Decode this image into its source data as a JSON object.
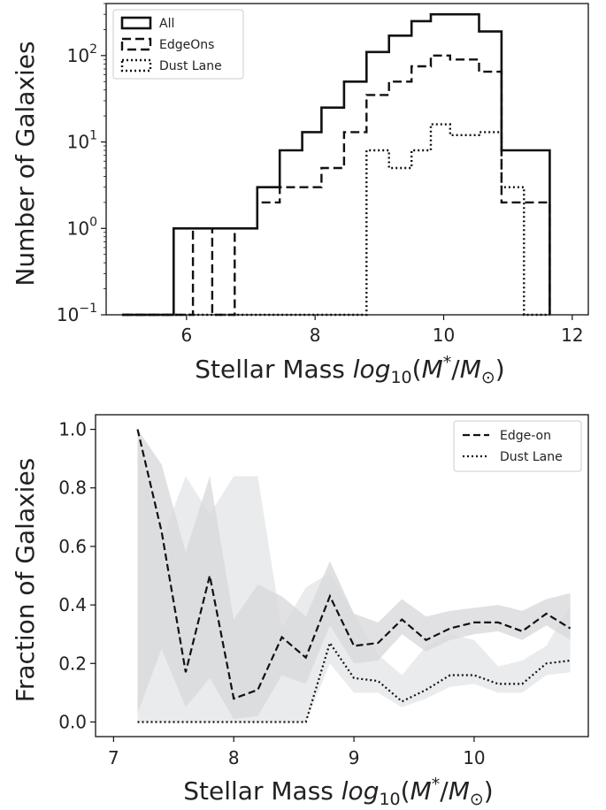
{
  "chart_data": [
    {
      "type": "histogram",
      "ylabel": "Number of Galaxies",
      "xlabel_text": "Stellar Mass",
      "xlabel_math": "log10(M*/M⊙)",
      "xlim": [
        4.75,
        12.25
      ],
      "xticks": [
        6,
        8,
        10,
        12
      ],
      "yscale": "log",
      "ylim": [
        0.1,
        400
      ],
      "yticks": [
        {
          "value": 0.1,
          "base": "10",
          "exp": "−1"
        },
        {
          "value": 1,
          "base": "10",
          "exp": "0"
        },
        {
          "value": 10,
          "base": "10",
          "exp": "1"
        },
        {
          "value": 100,
          "base": "10",
          "exp": "2"
        }
      ],
      "legend_position": "upper-left",
      "bin_edges": [
        5.0,
        5.4,
        5.8,
        6.1,
        6.4,
        6.75,
        7.1,
        7.45,
        7.8,
        8.1,
        8.45,
        8.8,
        9.15,
        9.5,
        9.8,
        10.1,
        10.55,
        10.9,
        11.25,
        11.65
      ],
      "series": [
        {
          "name": "All",
          "style": "solid",
          "counts": [
            0.1,
            0.1,
            1,
            1,
            1,
            1,
            3,
            8,
            13,
            25,
            50,
            110,
            170,
            250,
            300,
            300,
            190,
            8,
            8
          ]
        },
        {
          "name": "EdgeOns",
          "style": "dashed",
          "counts": [
            0.1,
            0.1,
            0.1,
            1,
            0.1,
            1,
            2,
            3,
            3,
            5,
            13,
            35,
            50,
            75,
            100,
            90,
            65,
            2,
            2
          ]
        },
        {
          "name": "Dust Lane",
          "style": "dotted",
          "counts": [
            0.1,
            0.1,
            0.1,
            0.1,
            0.1,
            0.1,
            0.1,
            0.1,
            0.1,
            0.1,
            0.1,
            8,
            5,
            8,
            16,
            12,
            13,
            3,
            0.1
          ]
        }
      ]
    },
    {
      "type": "line",
      "ylabel": "Fraction of Galaxies",
      "xlabel_text": "Stellar Mass",
      "xlabel_math": "log10(M*/M⊙)",
      "xlim": [
        6.85,
        10.95
      ],
      "ylim": [
        -0.05,
        1.05
      ],
      "xticks": [
        7,
        8,
        9,
        10
      ],
      "yticks": [
        0.0,
        0.2,
        0.4,
        0.6,
        0.8,
        1.0
      ],
      "legend_position": "upper-right",
      "series": [
        {
          "name": "Edge-on",
          "style": "dashed",
          "x": [
            7.2,
            7.4,
            7.6,
            7.8,
            8.0,
            8.2,
            8.4,
            8.6,
            8.8,
            9.0,
            9.2,
            9.4,
            9.6,
            9.8,
            10.0,
            10.2,
            10.4,
            10.6,
            10.8
          ],
          "y": [
            1.0,
            0.65,
            0.17,
            0.5,
            0.08,
            0.11,
            0.29,
            0.22,
            0.43,
            0.26,
            0.27,
            0.35,
            0.28,
            0.32,
            0.34,
            0.34,
            0.31,
            0.37,
            0.32
          ],
          "band_lower": [
            0.03,
            0.25,
            0.05,
            0.15,
            0.01,
            0.02,
            0.16,
            0.13,
            0.33,
            0.2,
            0.21,
            0.3,
            0.24,
            0.28,
            0.3,
            0.31,
            0.28,
            0.33,
            0.28
          ],
          "band_upper": [
            1.0,
            0.88,
            0.58,
            0.84,
            0.35,
            0.47,
            0.43,
            0.36,
            0.55,
            0.37,
            0.34,
            0.42,
            0.36,
            0.38,
            0.39,
            0.4,
            0.38,
            0.42,
            0.44
          ]
        },
        {
          "name": "Dust Lane",
          "style": "dotted",
          "x": [
            7.2,
            7.4,
            7.6,
            7.8,
            8.0,
            8.2,
            8.4,
            8.6,
            8.8,
            9.0,
            9.2,
            9.4,
            9.6,
            9.8,
            10.0,
            10.2,
            10.4,
            10.6,
            10.8
          ],
          "y": [
            0.0,
            0.0,
            0.0,
            0.0,
            0.0,
            0.0,
            0.0,
            0.0,
            0.27,
            0.15,
            0.14,
            0.07,
            0.11,
            0.16,
            0.16,
            0.13,
            0.13,
            0.2,
            0.21
          ],
          "band_lower": [
            0.0,
            0.0,
            0.0,
            0.0,
            0.0,
            0.0,
            0.0,
            0.0,
            0.2,
            0.1,
            0.1,
            0.05,
            0.08,
            0.12,
            0.13,
            0.1,
            0.1,
            0.16,
            0.17
          ],
          "band_upper": [
            0.97,
            0.62,
            0.84,
            0.71,
            0.84,
            0.84,
            0.32,
            0.46,
            0.51,
            0.37,
            0.23,
            0.16,
            0.26,
            0.3,
            0.28,
            0.19,
            0.21,
            0.26,
            0.4
          ]
        }
      ]
    }
  ]
}
